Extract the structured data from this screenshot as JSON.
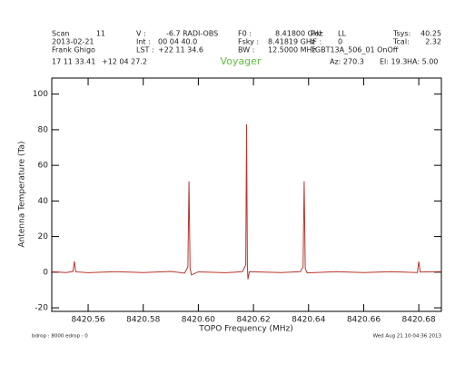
{
  "header": [
    "Scan",
    "11",
    "V :",
    "-6.7 RADI-OBS",
    "F0 :",
    "8.41800 GHz",
    "Pol:",
    "LL",
    "Tsys:",
    "40.25",
    "2013-02-21",
    "Int :",
    "00 04 40.0",
    "Fsky :",
    "8.41819 GHz",
    "IF :",
    "0",
    "Tcal:",
    "2.32",
    "Frank Ghigo",
    "LST :",
    "+22 11 34.6",
    "BW :",
    "12.5000 MHz",
    "TGBT13A_506_01 OnOff",
    "17 11 33.41",
    "+12 04 27.2",
    "Az: 270.3",
    "El: 19.3",
    "HA: 5.00"
  ],
  "footer": [
    "bdrop : 8000   edrop : 0",
    "Wed Aug 21 10:04:36 2013"
  ],
  "chart_data": {
    "type": "line",
    "title": "Voyager",
    "x_label": "TOPO Frequency (MHz)",
    "y_label": "Antenna Temperature (Ta)",
    "xlim": [
      8420.5468,
      8420.6882
    ],
    "ylim": [
      -22,
      109
    ],
    "xticks": [
      8420.56,
      8420.58,
      {
        "value": 8420.6,
        "label": "8420.60"
      },
      8420.62,
      8420.64,
      8420.66,
      8420.68
    ],
    "yticks": [
      -20,
      0,
      20,
      40,
      60,
      80,
      100
    ],
    "series": [
      {
        "color": "#b8352b",
        "x": [
          8420.5468,
          8420.552,
          8420.5545,
          8420.555,
          8420.5555,
          8420.56,
          8420.57,
          8420.58,
          8420.59,
          8420.595,
          8420.5962,
          8420.5966,
          8420.597,
          8420.5975,
          8420.6,
          8420.61,
          8420.616,
          8420.6172,
          8420.6175,
          8420.6178,
          8420.618,
          8420.6185,
          8420.63,
          8420.637,
          8420.638,
          8420.6384,
          8420.6388,
          8420.6395,
          8420.65,
          8420.66,
          8420.67,
          8420.6795,
          8420.68,
          8420.6805,
          8420.6882
        ],
        "values": [
          0.3,
          -0.2,
          0.4,
          6,
          0.2,
          -0.3,
          0.3,
          -0.2,
          0.4,
          -0.5,
          3,
          51,
          2,
          -1.5,
          0.2,
          -0.3,
          0.3,
          4,
          83,
          3,
          -4,
          0.3,
          -0.2,
          0.3,
          3,
          51,
          2,
          -0.4,
          0.3,
          -0.2,
          0.3,
          -0.2,
          6,
          0.1,
          0.3
        ]
      }
    ]
  }
}
